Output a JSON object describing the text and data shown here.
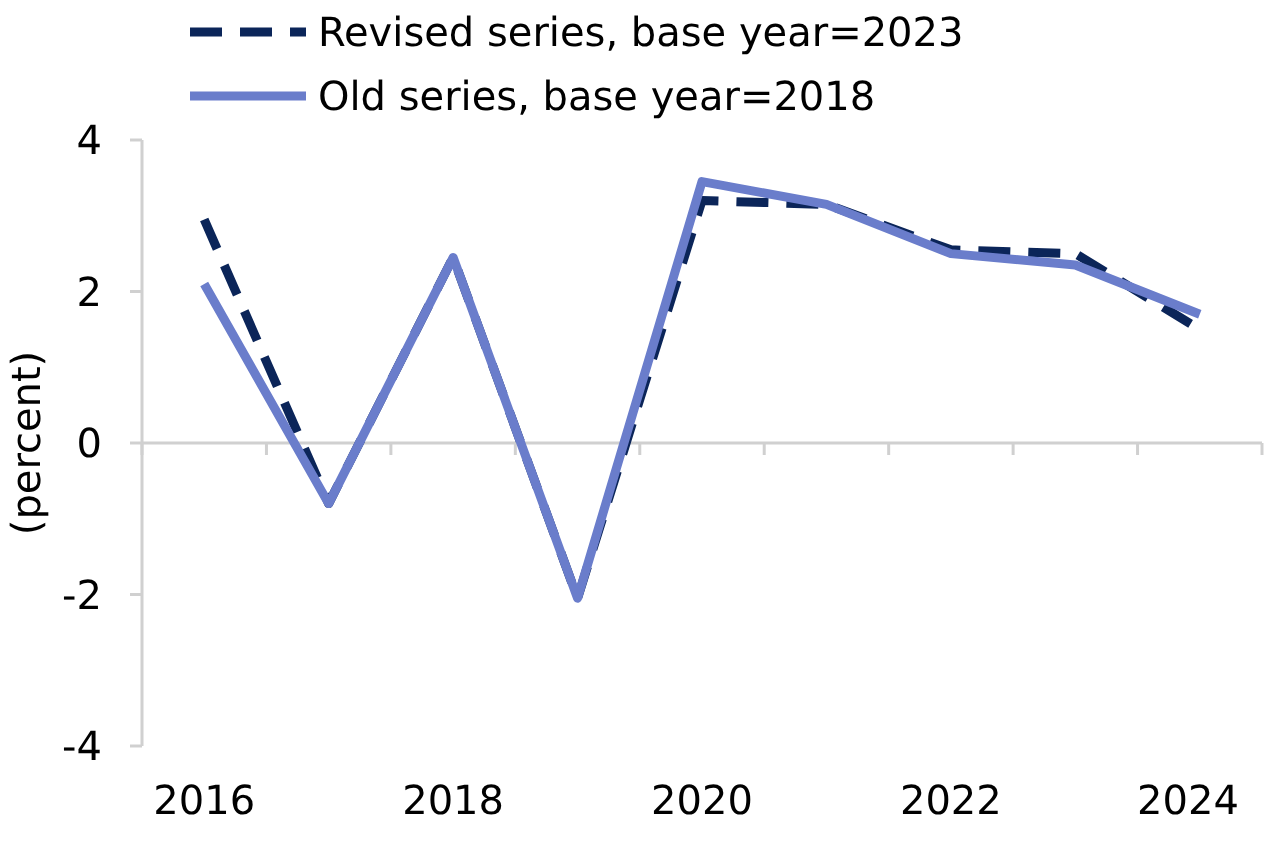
{
  "chart_data": {
    "type": "line",
    "ylabel": "(percent)",
    "categories": [
      "2016",
      null,
      "2018",
      null,
      "2020",
      null,
      "2022",
      null,
      "2024"
    ],
    "series": [
      {
        "name": "Revised series, base year=2023",
        "color": "#0b2559",
        "line_style": "dashed",
        "values": [
          2.95,
          -0.8,
          2.45,
          -2.05,
          3.2,
          3.15,
          2.55,
          2.5,
          1.5
        ]
      },
      {
        "name": "Old series, base year=2018",
        "color": "#6a7dcb",
        "line_style": "solid",
        "values": [
          2.1,
          -0.8,
          2.45,
          -2.05,
          3.45,
          3.15,
          2.5,
          2.35,
          1.7
        ]
      }
    ],
    "ylim": [
      -4,
      4
    ],
    "yticks": [
      -4,
      -2,
      0,
      2,
      4
    ],
    "legend": "top left"
  }
}
